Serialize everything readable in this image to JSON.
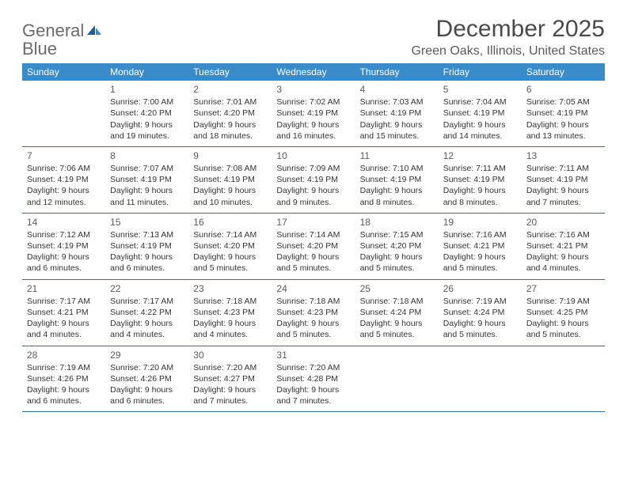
{
  "logo": {
    "text_general": "General",
    "text_blue": "Blue"
  },
  "header": {
    "month_title": "December 2025",
    "location": "Green Oaks, Illinois, United States"
  },
  "colors": {
    "header_bg": "#3a8bc9",
    "header_text": "#ffffff",
    "row_border": "#2b6fa8",
    "body_text": "#333333",
    "logo_gray": "#6b6b6b",
    "logo_blue": "#2b7bbf"
  },
  "day_names": [
    "Sunday",
    "Monday",
    "Tuesday",
    "Wednesday",
    "Thursday",
    "Friday",
    "Saturday"
  ],
  "weeks": [
    [
      {
        "n": "",
        "sunrise": "",
        "sunset": "",
        "daylight": ""
      },
      {
        "n": "1",
        "sunrise": "Sunrise: 7:00 AM",
        "sunset": "Sunset: 4:20 PM",
        "daylight": "Daylight: 9 hours and 19 minutes."
      },
      {
        "n": "2",
        "sunrise": "Sunrise: 7:01 AM",
        "sunset": "Sunset: 4:20 PM",
        "daylight": "Daylight: 9 hours and 18 minutes."
      },
      {
        "n": "3",
        "sunrise": "Sunrise: 7:02 AM",
        "sunset": "Sunset: 4:19 PM",
        "daylight": "Daylight: 9 hours and 16 minutes."
      },
      {
        "n": "4",
        "sunrise": "Sunrise: 7:03 AM",
        "sunset": "Sunset: 4:19 PM",
        "daylight": "Daylight: 9 hours and 15 minutes."
      },
      {
        "n": "5",
        "sunrise": "Sunrise: 7:04 AM",
        "sunset": "Sunset: 4:19 PM",
        "daylight": "Daylight: 9 hours and 14 minutes."
      },
      {
        "n": "6",
        "sunrise": "Sunrise: 7:05 AM",
        "sunset": "Sunset: 4:19 PM",
        "daylight": "Daylight: 9 hours and 13 minutes."
      }
    ],
    [
      {
        "n": "7",
        "sunrise": "Sunrise: 7:06 AM",
        "sunset": "Sunset: 4:19 PM",
        "daylight": "Daylight: 9 hours and 12 minutes."
      },
      {
        "n": "8",
        "sunrise": "Sunrise: 7:07 AM",
        "sunset": "Sunset: 4:19 PM",
        "daylight": "Daylight: 9 hours and 11 minutes."
      },
      {
        "n": "9",
        "sunrise": "Sunrise: 7:08 AM",
        "sunset": "Sunset: 4:19 PM",
        "daylight": "Daylight: 9 hours and 10 minutes."
      },
      {
        "n": "10",
        "sunrise": "Sunrise: 7:09 AM",
        "sunset": "Sunset: 4:19 PM",
        "daylight": "Daylight: 9 hours and 9 minutes."
      },
      {
        "n": "11",
        "sunrise": "Sunrise: 7:10 AM",
        "sunset": "Sunset: 4:19 PM",
        "daylight": "Daylight: 9 hours and 8 minutes."
      },
      {
        "n": "12",
        "sunrise": "Sunrise: 7:11 AM",
        "sunset": "Sunset: 4:19 PM",
        "daylight": "Daylight: 9 hours and 8 minutes."
      },
      {
        "n": "13",
        "sunrise": "Sunrise: 7:11 AM",
        "sunset": "Sunset: 4:19 PM",
        "daylight": "Daylight: 9 hours and 7 minutes."
      }
    ],
    [
      {
        "n": "14",
        "sunrise": "Sunrise: 7:12 AM",
        "sunset": "Sunset: 4:19 PM",
        "daylight": "Daylight: 9 hours and 6 minutes."
      },
      {
        "n": "15",
        "sunrise": "Sunrise: 7:13 AM",
        "sunset": "Sunset: 4:19 PM",
        "daylight": "Daylight: 9 hours and 6 minutes."
      },
      {
        "n": "16",
        "sunrise": "Sunrise: 7:14 AM",
        "sunset": "Sunset: 4:20 PM",
        "daylight": "Daylight: 9 hours and 5 minutes."
      },
      {
        "n": "17",
        "sunrise": "Sunrise: 7:14 AM",
        "sunset": "Sunset: 4:20 PM",
        "daylight": "Daylight: 9 hours and 5 minutes."
      },
      {
        "n": "18",
        "sunrise": "Sunrise: 7:15 AM",
        "sunset": "Sunset: 4:20 PM",
        "daylight": "Daylight: 9 hours and 5 minutes."
      },
      {
        "n": "19",
        "sunrise": "Sunrise: 7:16 AM",
        "sunset": "Sunset: 4:21 PM",
        "daylight": "Daylight: 9 hours and 5 minutes."
      },
      {
        "n": "20",
        "sunrise": "Sunrise: 7:16 AM",
        "sunset": "Sunset: 4:21 PM",
        "daylight": "Daylight: 9 hours and 4 minutes."
      }
    ],
    [
      {
        "n": "21",
        "sunrise": "Sunrise: 7:17 AM",
        "sunset": "Sunset: 4:21 PM",
        "daylight": "Daylight: 9 hours and 4 minutes."
      },
      {
        "n": "22",
        "sunrise": "Sunrise: 7:17 AM",
        "sunset": "Sunset: 4:22 PM",
        "daylight": "Daylight: 9 hours and 4 minutes."
      },
      {
        "n": "23",
        "sunrise": "Sunrise: 7:18 AM",
        "sunset": "Sunset: 4:23 PM",
        "daylight": "Daylight: 9 hours and 4 minutes."
      },
      {
        "n": "24",
        "sunrise": "Sunrise: 7:18 AM",
        "sunset": "Sunset: 4:23 PM",
        "daylight": "Daylight: 9 hours and 5 minutes."
      },
      {
        "n": "25",
        "sunrise": "Sunrise: 7:18 AM",
        "sunset": "Sunset: 4:24 PM",
        "daylight": "Daylight: 9 hours and 5 minutes."
      },
      {
        "n": "26",
        "sunrise": "Sunrise: 7:19 AM",
        "sunset": "Sunset: 4:24 PM",
        "daylight": "Daylight: 9 hours and 5 minutes."
      },
      {
        "n": "27",
        "sunrise": "Sunrise: 7:19 AM",
        "sunset": "Sunset: 4:25 PM",
        "daylight": "Daylight: 9 hours and 5 minutes."
      }
    ],
    [
      {
        "n": "28",
        "sunrise": "Sunrise: 7:19 AM",
        "sunset": "Sunset: 4:26 PM",
        "daylight": "Daylight: 9 hours and 6 minutes."
      },
      {
        "n": "29",
        "sunrise": "Sunrise: 7:20 AM",
        "sunset": "Sunset: 4:26 PM",
        "daylight": "Daylight: 9 hours and 6 minutes."
      },
      {
        "n": "30",
        "sunrise": "Sunrise: 7:20 AM",
        "sunset": "Sunset: 4:27 PM",
        "daylight": "Daylight: 9 hours and 7 minutes."
      },
      {
        "n": "31",
        "sunrise": "Sunrise: 7:20 AM",
        "sunset": "Sunset: 4:28 PM",
        "daylight": "Daylight: 9 hours and 7 minutes."
      },
      {
        "n": "",
        "sunrise": "",
        "sunset": "",
        "daylight": ""
      },
      {
        "n": "",
        "sunrise": "",
        "sunset": "",
        "daylight": ""
      },
      {
        "n": "",
        "sunrise": "",
        "sunset": "",
        "daylight": ""
      }
    ]
  ]
}
